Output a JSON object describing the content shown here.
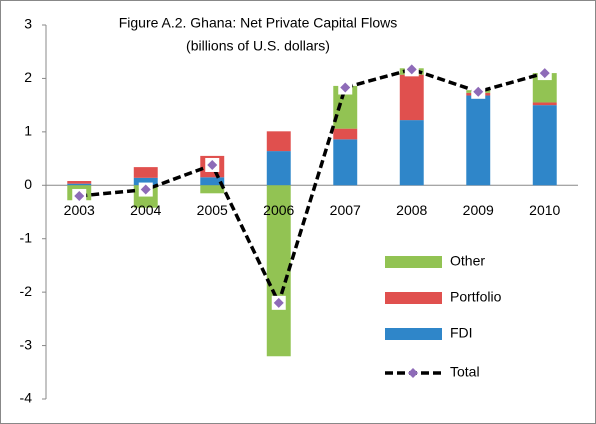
{
  "chart_data": {
    "type": "bar",
    "stacked": true,
    "title": "Figure A.2. Ghana: Net Private Capital Flows",
    "subtitle": "(billions of U.S. dollars)",
    "categories": [
      "2003",
      "2004",
      "2005",
      "2006",
      "2007",
      "2008",
      "2009",
      "2010"
    ],
    "series": [
      {
        "name": "FDI",
        "color": "#2f86c9",
        "values": [
          0.03,
          0.14,
          0.15,
          0.64,
          0.86,
          1.22,
          1.68,
          1.5
        ]
      },
      {
        "name": "Portfolio",
        "color": "#e0504e",
        "values": [
          0.05,
          0.2,
          0.4,
          0.37,
          0.2,
          0.85,
          0.05,
          0.05
        ]
      },
      {
        "name": "Other",
        "color": "#92c353",
        "values": [
          -0.28,
          -0.42,
          -0.15,
          -3.2,
          0.8,
          0.12,
          0.05,
          0.55
        ]
      }
    ],
    "line": {
      "name": "Total",
      "type": "line",
      "color": "#000000",
      "marker_color": "#8e6bb8",
      "values": [
        -0.2,
        -0.08,
        0.38,
        -2.2,
        1.83,
        2.17,
        1.75,
        2.1
      ]
    },
    "ylim": [
      -4,
      3
    ],
    "yticks": [
      -4,
      -3,
      -2,
      -1,
      0,
      1,
      2,
      3
    ],
    "grid": false
  }
}
